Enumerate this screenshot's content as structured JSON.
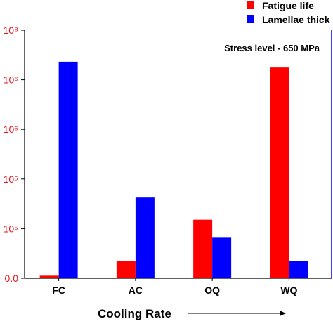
{
  "chart_data": {
    "type": "bar",
    "categories": [
      "FC",
      "AC",
      "OQ",
      "WQ"
    ],
    "xlabel": "Cooling Rate",
    "annotation": "Stress level - 650 MPa",
    "legend_position": "top-right",
    "y_left": {
      "scale": "log",
      "ylim": [
        10000,
        100000000
      ],
      "tick_labels": [
        "0.0",
        "10⁵",
        "10⁵",
        "10⁶",
        "10⁶",
        "10⁸"
      ]
    },
    "series": [
      {
        "name": "Fatigue life",
        "color": "#ff0000",
        "values": [
          11000,
          19000,
          88000,
          25000000
        ]
      },
      {
        "name": "Lamellae thick",
        "color": "#0000ff",
        "values": [
          31000000,
          200000,
          45000,
          19000
        ]
      }
    ],
    "grid": false
  }
}
